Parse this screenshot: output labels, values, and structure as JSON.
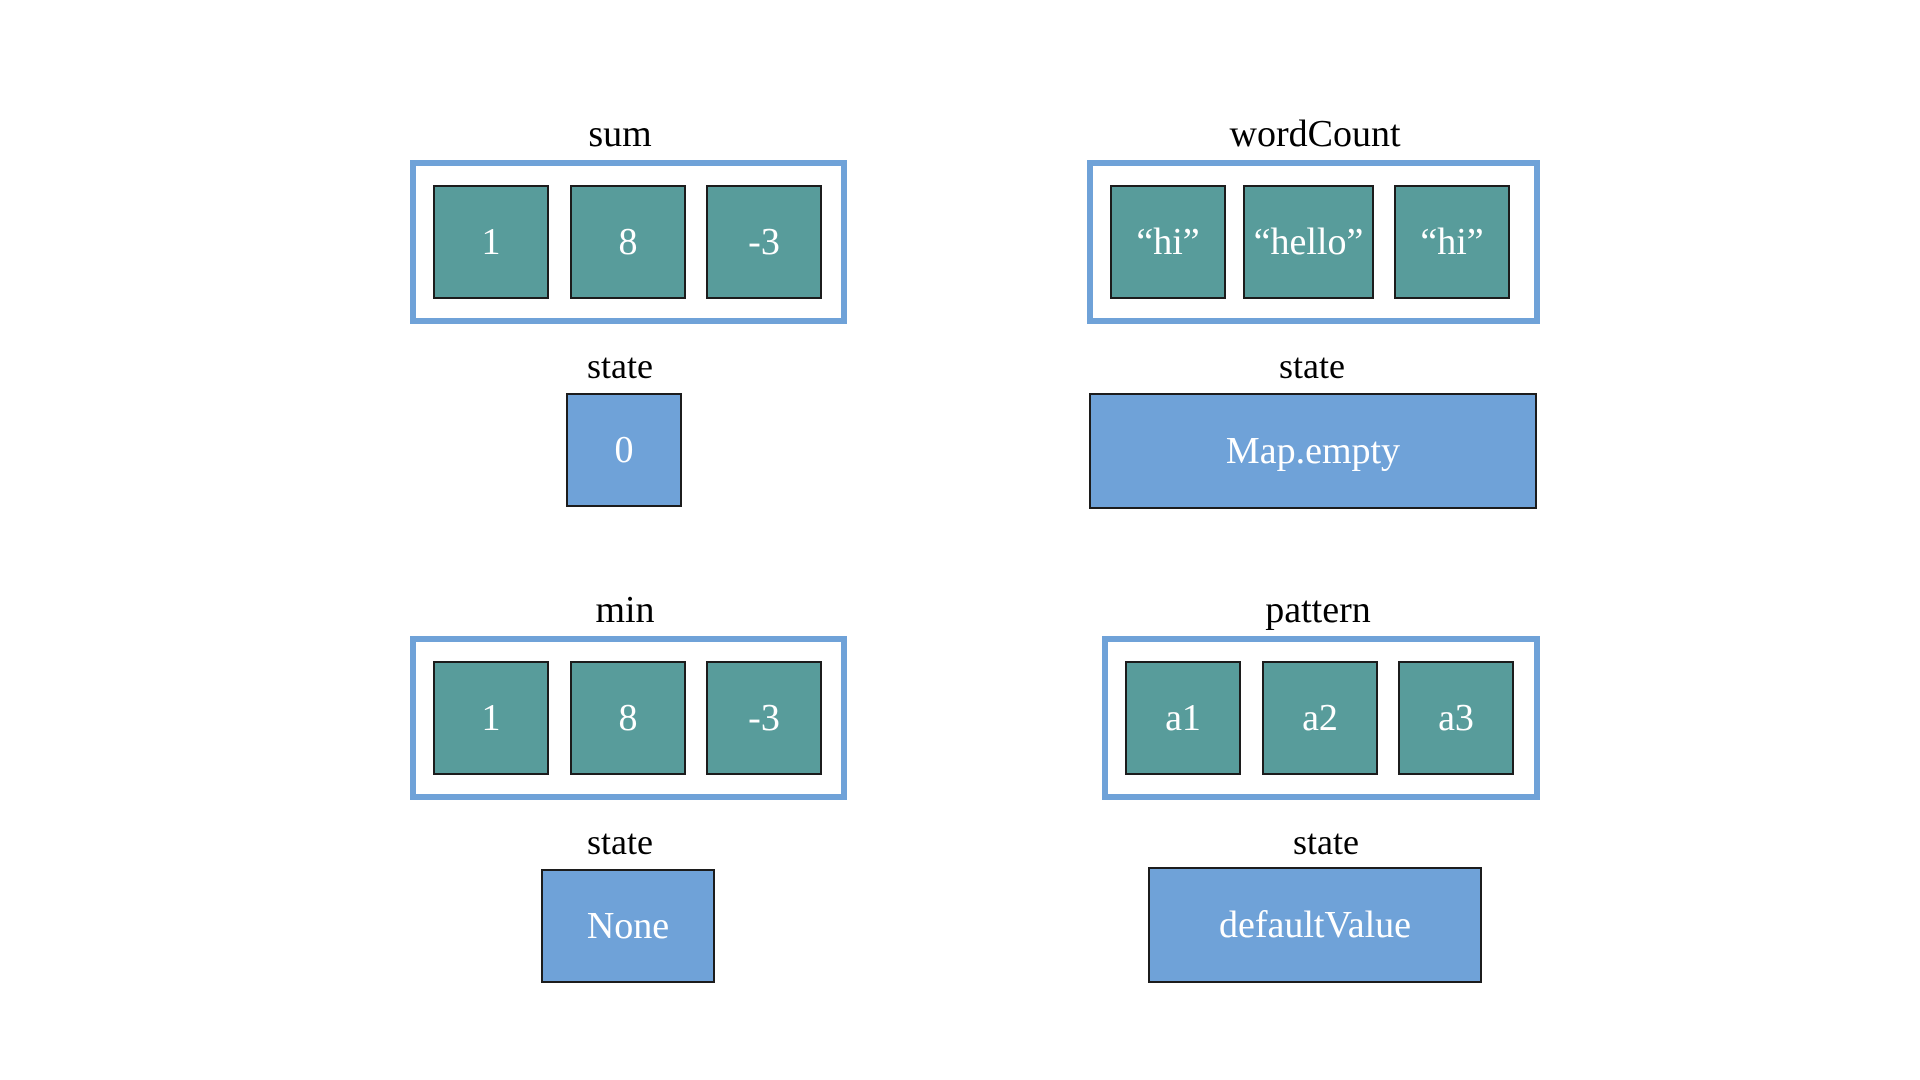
{
  "colors": {
    "sequence_border": "#6fa2d8",
    "element_fill": "#589c9b",
    "state_fill": "#6fa2d8",
    "text_on_box": "#ffffff"
  },
  "panels": [
    {
      "title": "sum",
      "elements": [
        "1",
        "8",
        "-3"
      ],
      "state_label": "state",
      "state_value": "0"
    },
    {
      "title": "wordCount",
      "elements": [
        "“hi”",
        "“hello”",
        "“hi”"
      ],
      "state_label": "state",
      "state_value": "Map.empty"
    },
    {
      "title": "min",
      "elements": [
        "1",
        "8",
        "-3"
      ],
      "state_label": "state",
      "state_value": "None"
    },
    {
      "title": "pattern",
      "elements": [
        "a1",
        "a2",
        "a3"
      ],
      "state_label": "state",
      "state_value": "defaultValue"
    }
  ]
}
